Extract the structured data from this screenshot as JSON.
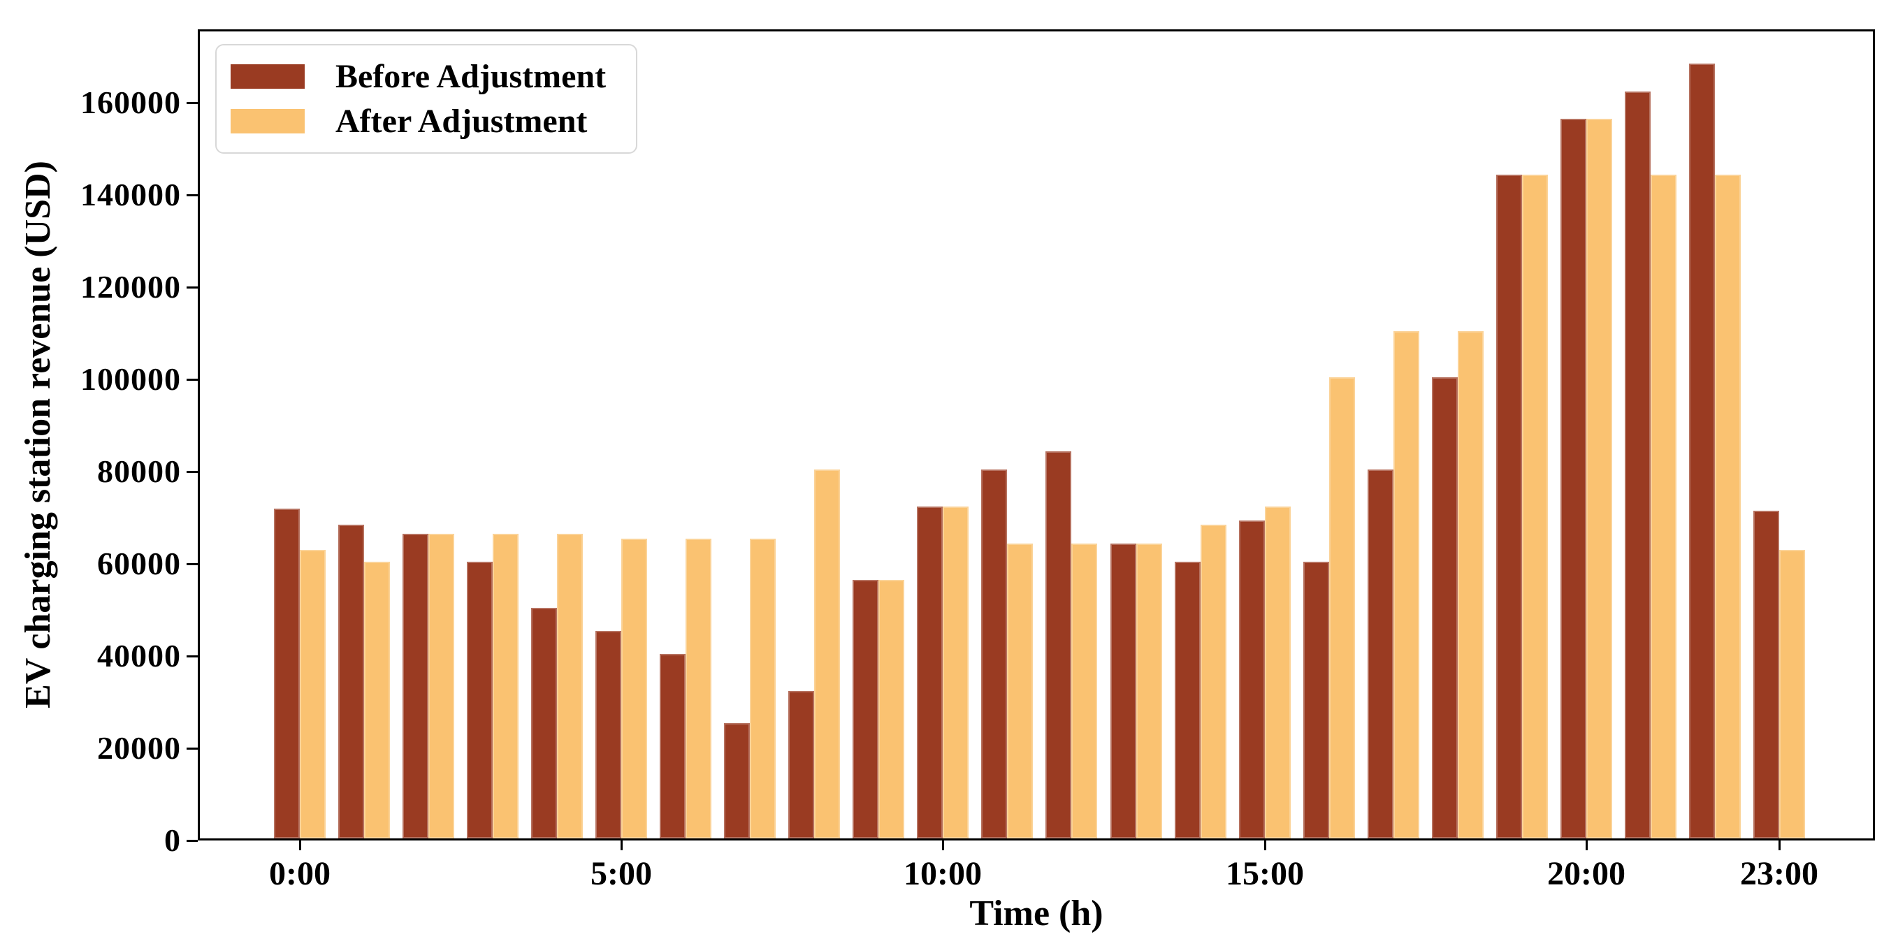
{
  "figure": {
    "xlabel": "Time (h)",
    "ylabel": "EV charging station revenue (USD)",
    "legend": {
      "items": [
        {
          "label": "Before Adjustment",
          "color": "#9A3B22"
        },
        {
          "label": "After Adjustment",
          "color": "#FAC271"
        }
      ]
    }
  },
  "chart_data": {
    "type": "bar",
    "title": "",
    "xlabel": "Time (h)",
    "ylabel": "EV charging station revenue (USD)",
    "categories": [
      "0:00",
      "1:00",
      "2:00",
      "3:00",
      "4:00",
      "5:00",
      "6:00",
      "7:00",
      "8:00",
      "9:00",
      "10:00",
      "11:00",
      "12:00",
      "13:00",
      "14:00",
      "15:00",
      "16:00",
      "17:00",
      "18:00",
      "19:00",
      "20:00",
      "21:00",
      "22:00",
      "23:00"
    ],
    "series": [
      {
        "name": "Before Adjustment",
        "color": "#9A3B22",
        "values": [
          71500,
          68000,
          66000,
          60000,
          50000,
          45000,
          40000,
          25000,
          32000,
          56000,
          72000,
          80000,
          84000,
          64000,
          60000,
          69000,
          60000,
          80000,
          100000,
          144000,
          156000,
          162000,
          168000,
          71000
        ]
      },
      {
        "name": "After Adjustment",
        "color": "#FAC271",
        "values": [
          62500,
          60000,
          66000,
          66000,
          66000,
          65000,
          65000,
          65000,
          80000,
          56000,
          72000,
          64000,
          64000,
          64000,
          68000,
          72000,
          100000,
          110000,
          110000,
          144000,
          156000,
          144000,
          144000,
          62500
        ]
      }
    ],
    "x_tick_hours": [
      0,
      5,
      10,
      15,
      20,
      23
    ],
    "x_tick_labels": [
      "0:00",
      "5:00",
      "10:00",
      "15:00",
      "20:00",
      "23:00"
    ],
    "y_ticks": [
      0,
      20000,
      40000,
      60000,
      80000,
      100000,
      120000,
      140000,
      160000
    ],
    "ylim": [
      0,
      175900
    ],
    "xlim_hours": [
      -1.59,
      24.49
    ],
    "bar_width_hours": 0.4,
    "grid": false,
    "legend_position": "upper left"
  },
  "layout_hints": {
    "note": "values in USD read from axis; bars paired per hour, Before left / After right"
  }
}
